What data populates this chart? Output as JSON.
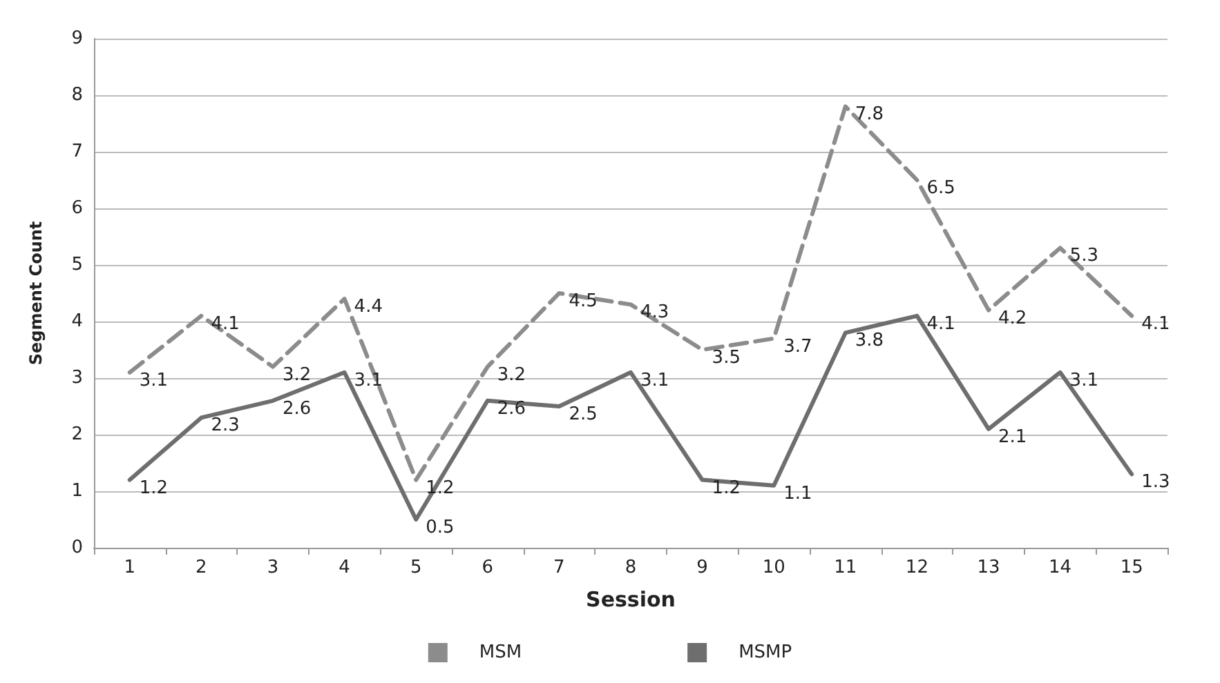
{
  "chart_data": {
    "type": "line",
    "xlabel": "Session",
    "ylabel": "Segment Count",
    "categories": [
      "1",
      "2",
      "3",
      "4",
      "5",
      "6",
      "7",
      "8",
      "9",
      "10",
      "11",
      "12",
      "13",
      "14",
      "15"
    ],
    "series": [
      {
        "name": "MSM",
        "color": "#8c8c8c",
        "line_style": "dashed",
        "values": [
          3.1,
          4.1,
          3.2,
          4.4,
          1.2,
          3.2,
          4.5,
          4.3,
          3.5,
          3.7,
          7.8,
          6.5,
          4.2,
          5.3,
          4.1
        ]
      },
      {
        "name": "MSMP",
        "color": "#6e6e6e",
        "line_style": "solid",
        "values": [
          1.2,
          2.3,
          2.6,
          3.1,
          0.5,
          2.6,
          2.5,
          3.1,
          1.2,
          1.1,
          3.8,
          4.1,
          2.1,
          3.1,
          1.3
        ]
      }
    ],
    "ylim": [
      0,
      9
    ],
    "yticks": [
      0,
      1,
      2,
      3,
      4,
      5,
      6,
      7,
      8,
      9
    ],
    "grid": "y",
    "legend": "bottom",
    "marker": "none",
    "data_labels": true
  }
}
